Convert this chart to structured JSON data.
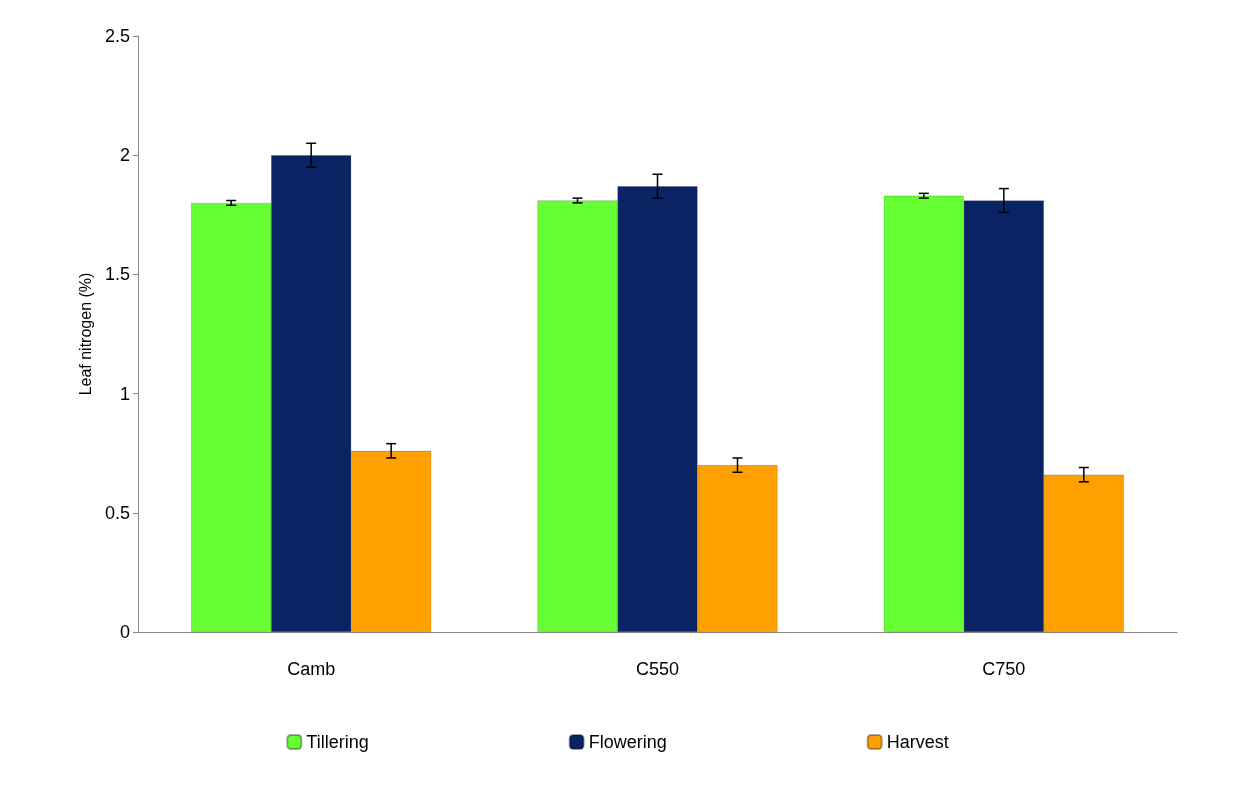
{
  "chart_data": {
    "type": "bar",
    "ylabel": "Leaf nitrogen (%)",
    "categories": [
      "Camb",
      "C550",
      "C750"
    ],
    "series": [
      {
        "name": "Tillering",
        "color": "#66ff33",
        "values": [
          1.8,
          1.81,
          1.83
        ],
        "errors": [
          0.01,
          0.01,
          0.01
        ]
      },
      {
        "name": "Flowering",
        "color": "#0a2463",
        "values": [
          2.0,
          1.87,
          1.81
        ],
        "errors": [
          0.05,
          0.05,
          0.05
        ]
      },
      {
        "name": "Harvest",
        "color": "#ffa000",
        "values": [
          0.76,
          0.7,
          0.66
        ],
        "errors": [
          0.03,
          0.03,
          0.03
        ]
      }
    ],
    "ylim": [
      0,
      2.5
    ],
    "yticks": [
      0,
      0.5,
      1,
      1.5,
      2,
      2.5
    ],
    "grid": false,
    "legend": "bottom"
  }
}
